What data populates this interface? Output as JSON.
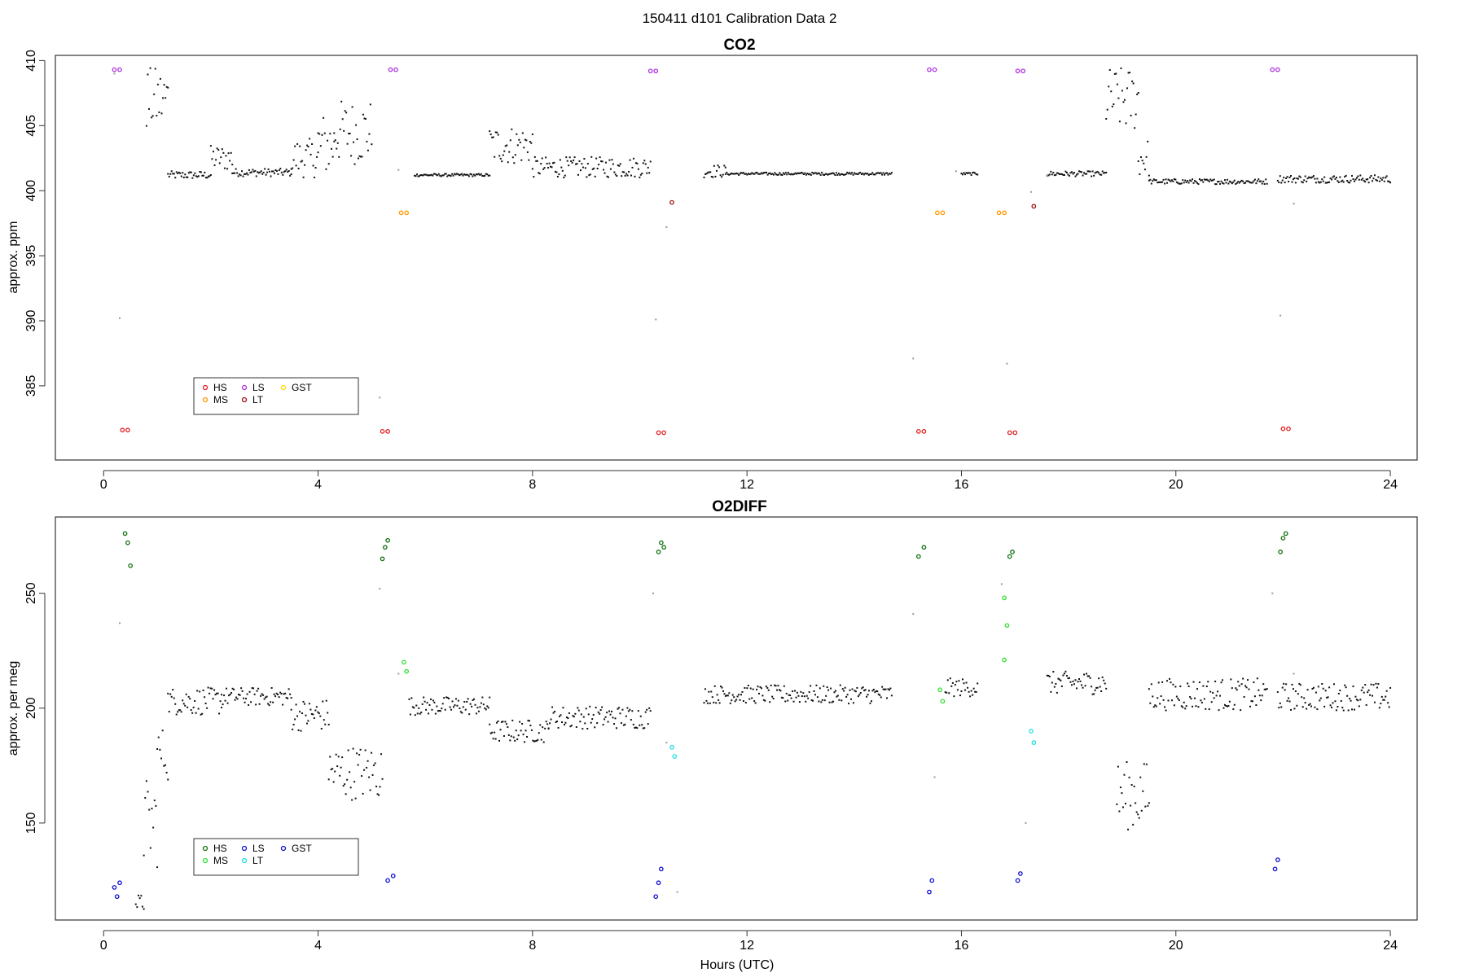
{
  "figure_title": "150411   d101   Calibration Data 2",
  "xlabel": "Hours (UTC)",
  "chart_data": [
    {
      "type": "scatter",
      "title": "CO2",
      "ylabel": "approx. ppm",
      "xlim": [
        -0.9,
        24.5
      ],
      "ylim": [
        379.3,
        410.4
      ],
      "xticks": [
        "0",
        "4",
        "8",
        "12",
        "16",
        "20",
        "24"
      ],
      "yticks": [
        "385",
        "390",
        "395",
        "400",
        "405",
        "410"
      ],
      "legend": {
        "placement": "bottom-left",
        "entries": [
          {
            "label": "HS",
            "color": "#e02020"
          },
          {
            "label": "MS",
            "color": "#ff9900"
          },
          {
            "label": "LS",
            "color": "#b030e0"
          },
          {
            "label": "LT",
            "color": "#a01010"
          },
          {
            "label": "GST",
            "color": "#ffd700"
          }
        ]
      },
      "series": [
        {
          "color": "#e02020",
          "points": [
            [
              0.35,
              381.6
            ],
            [
              0.45,
              381.6
            ],
            [
              5.2,
              381.5
            ],
            [
              5.3,
              381.5
            ],
            [
              10.35,
              381.4
            ],
            [
              10.45,
              381.4
            ],
            [
              15.2,
              381.5
            ],
            [
              15.3,
              381.5
            ],
            [
              16.9,
              381.4
            ],
            [
              17.0,
              381.4
            ],
            [
              22.0,
              381.7
            ],
            [
              22.1,
              381.7
            ]
          ]
        },
        {
          "color": "#ff9900",
          "points": [
            [
              5.55,
              398.3
            ],
            [
              5.65,
              398.3
            ],
            [
              15.55,
              398.3
            ],
            [
              15.65,
              398.3
            ],
            [
              16.7,
              398.3
            ],
            [
              16.8,
              398.3
            ]
          ]
        },
        {
          "color": "#b030e0",
          "points": [
            [
              0.2,
              409.3
            ],
            [
              0.3,
              409.3
            ],
            [
              5.35,
              409.3
            ],
            [
              5.45,
              409.3
            ],
            [
              10.2,
              409.2
            ],
            [
              10.3,
              409.2
            ],
            [
              15.4,
              409.3
            ],
            [
              15.5,
              409.3
            ],
            [
              17.05,
              409.2
            ],
            [
              17.15,
              409.2
            ],
            [
              21.8,
              409.3
            ],
            [
              21.9,
              409.3
            ]
          ]
        },
        {
          "color": "#a01010",
          "points": [
            [
              10.6,
              399.1
            ],
            [
              17.35,
              398.8
            ]
          ]
        }
      ],
      "segments_black": [
        [
          1.2,
          2.0,
          401.2,
          0.3
        ],
        [
          2.0,
          2.4,
          402.5,
          1.0
        ],
        [
          2.4,
          3.5,
          401.4,
          0.3
        ],
        [
          3.5,
          4.0,
          402.5,
          1.5
        ],
        [
          4.0,
          4.3,
          403.5,
          2.5
        ],
        [
          4.3,
          5.0,
          404.5,
          2.5
        ],
        [
          0.8,
          1.2,
          407.0,
          2.5
        ],
        [
          5.8,
          7.2,
          401.2,
          0.1
        ],
        [
          7.2,
          8.0,
          403.5,
          1.5
        ],
        [
          8.0,
          10.2,
          401.8,
          0.8
        ],
        [
          11.2,
          11.6,
          401.5,
          0.5
        ],
        [
          11.6,
          14.7,
          401.3,
          0.1
        ],
        [
          16.0,
          16.3,
          401.3,
          0.1
        ],
        [
          17.6,
          18.7,
          401.3,
          0.2
        ],
        [
          18.7,
          19.3,
          407.0,
          2.5
        ],
        [
          19.3,
          19.5,
          402.5,
          1.5
        ],
        [
          19.5,
          21.7,
          400.7,
          0.2
        ],
        [
          21.9,
          24.0,
          400.9,
          0.3
        ]
      ],
      "points_grey": [
        [
          0.2,
          409.0
        ],
        [
          0.3,
          390.2
        ],
        [
          5.15,
          384.1
        ],
        [
          5.5,
          401.6
        ],
        [
          10.3,
          390.1
        ],
        [
          10.5,
          397.2
        ],
        [
          15.1,
          387.1
        ],
        [
          15.9,
          401.5
        ],
        [
          16.85,
          386.7
        ],
        [
          17.3,
          399.9
        ],
        [
          17.6,
          401.2
        ],
        [
          21.95,
          390.4
        ],
        [
          22.2,
          399.0
        ]
      ]
    },
    {
      "type": "scatter",
      "title": "O2DIFF",
      "ylabel": "approx. per meg",
      "xlim": [
        -0.9,
        24.5
      ],
      "ylim": [
        107.8,
        283.2
      ],
      "xticks": [
        "0",
        "4",
        "8",
        "12",
        "16",
        "20",
        "24"
      ],
      "yticks": [
        "150",
        "200",
        "250"
      ],
      "legend": {
        "placement": "bottom-left",
        "entries": [
          {
            "label": "HS",
            "color": "#107010"
          },
          {
            "label": "MS",
            "color": "#30e030"
          },
          {
            "label": "LS",
            "color": "#1010d0"
          },
          {
            "label": "LT",
            "color": "#20e0e0"
          },
          {
            "label": "GST",
            "color": "#1010d0"
          }
        ]
      },
      "series": [
        {
          "color": "#107010",
          "points": [
            [
              0.4,
              276.0
            ],
            [
              0.45,
              272.0
            ],
            [
              0.5,
              262.0
            ],
            [
              5.2,
              265.0
            ],
            [
              5.25,
              270.0
            ],
            [
              5.3,
              273.0
            ],
            [
              10.35,
              268.0
            ],
            [
              10.4,
              272.0
            ],
            [
              10.45,
              270.0
            ],
            [
              15.2,
              266.0
            ],
            [
              15.3,
              270.0
            ],
            [
              16.9,
              266.0
            ],
            [
              16.95,
              268.0
            ],
            [
              21.95,
              268.0
            ],
            [
              22.0,
              274.0
            ],
            [
              22.05,
              276.0
            ]
          ]
        },
        {
          "color": "#30e030",
          "points": [
            [
              5.6,
              220.0
            ],
            [
              5.65,
              216.0
            ],
            [
              15.6,
              208.0
            ],
            [
              15.65,
              203.0
            ],
            [
              16.8,
              248.0
            ],
            [
              16.85,
              236.0
            ],
            [
              16.8,
              221.0
            ]
          ]
        },
        {
          "color": "#1010d0",
          "points": [
            [
              0.2,
              122.0
            ],
            [
              0.25,
              118.0
            ],
            [
              0.3,
              124.0
            ],
            [
              5.3,
              125.0
            ],
            [
              5.4,
              127.0
            ],
            [
              10.3,
              118.0
            ],
            [
              10.35,
              124.0
            ],
            [
              10.4,
              130.0
            ],
            [
              15.4,
              120.0
            ],
            [
              15.45,
              125.0
            ],
            [
              17.05,
              125.0
            ],
            [
              17.1,
              128.0
            ],
            [
              21.85,
              130.0
            ],
            [
              21.9,
              134.0
            ]
          ]
        },
        {
          "color": "#20e0e0",
          "points": [
            [
              10.6,
              183.0
            ],
            [
              10.65,
              179.0
            ],
            [
              17.3,
              190.0
            ],
            [
              17.35,
              185.0
            ]
          ]
        }
      ],
      "segments_black": [
        [
          0.6,
          0.75,
          115.0,
          4.0
        ],
        [
          0.75,
          1.0,
          150.0,
          20.0
        ],
        [
          1.0,
          1.2,
          180.0,
          12.0
        ],
        [
          1.2,
          2.2,
          203.0,
          6.0
        ],
        [
          2.2,
          3.5,
          205.0,
          4.0
        ],
        [
          3.5,
          4.2,
          197.0,
          7.0
        ],
        [
          4.2,
          5.2,
          172.0,
          12.0
        ],
        [
          5.7,
          7.2,
          201.0,
          4.0
        ],
        [
          7.2,
          8.3,
          190.0,
          5.0
        ],
        [
          8.3,
          10.2,
          196.0,
          5.0
        ],
        [
          11.2,
          14.7,
          206.0,
          4.0
        ],
        [
          15.7,
          16.3,
          209.0,
          4.0
        ],
        [
          17.6,
          18.7,
          211.0,
          5.0
        ],
        [
          18.9,
          19.5,
          162.0,
          15.0
        ],
        [
          19.5,
          21.7,
          206.0,
          7.0
        ],
        [
          21.9,
          24.0,
          205.0,
          6.0
        ]
      ],
      "points_grey": [
        [
          0.3,
          237.0
        ],
        [
          5.15,
          252.0
        ],
        [
          5.5,
          215.0
        ],
        [
          10.25,
          250.0
        ],
        [
          10.5,
          185.0
        ],
        [
          10.7,
          120.0
        ],
        [
          15.1,
          241.0
        ],
        [
          15.5,
          170.0
        ],
        [
          16.75,
          254.0
        ],
        [
          17.2,
          150.0
        ],
        [
          21.8,
          250.0
        ],
        [
          22.2,
          215.0
        ]
      ]
    }
  ]
}
